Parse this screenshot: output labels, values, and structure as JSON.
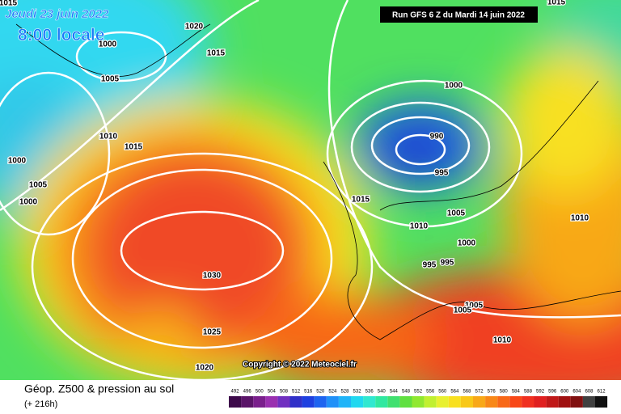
{
  "header": {
    "date": "Jeudi 23 juin 2022",
    "time": "8:00 locale",
    "run": "Run GFS 6 Z du Mardi 14 juin 2022"
  },
  "isobar_labels": [
    "1015",
    "1020",
    "1000",
    "1015",
    "1005",
    "1000",
    "1010",
    "1015",
    "990",
    "1000",
    "995",
    "1005",
    "1000",
    "1015",
    "1005",
    "1010",
    "1010",
    "1000",
    "995",
    "995",
    "1030",
    "1005",
    "1005",
    "1025",
    "1010",
    "1020",
    "1015"
  ],
  "copyright": "Copyright © 2022 Meteociel.fr",
  "footer": {
    "title": "Géop. Z500 & pression au sol",
    "subtitle": "(+ 216h)"
  },
  "legend": {
    "labels": [
      "492",
      "496",
      "500",
      "504",
      "508",
      "512",
      "516",
      "520",
      "524",
      "528",
      "532",
      "536",
      "540",
      "544",
      "548",
      "552",
      "556",
      "560",
      "564",
      "568",
      "572",
      "576",
      "580",
      "584",
      "588",
      "592",
      "596",
      "600",
      "604",
      "608",
      "612"
    ],
    "colors": [
      "#3d0a4a",
      "#5a1468",
      "#7a1f8c",
      "#9a30b0",
      "#7030c0",
      "#3030c8",
      "#1e40e0",
      "#1e64f0",
      "#2090f8",
      "#20b4f8",
      "#20d8f0",
      "#30e8d0",
      "#30e8a0",
      "#40e070",
      "#60e040",
      "#90e830",
      "#c0f030",
      "#e8f030",
      "#f8e020",
      "#f8c818",
      "#f8a818",
      "#f88818",
      "#f86818",
      "#f84818",
      "#f03020",
      "#e02020",
      "#c01818",
      "#a01010",
      "#801010",
      "#404040",
      "#101010"
    ]
  }
}
